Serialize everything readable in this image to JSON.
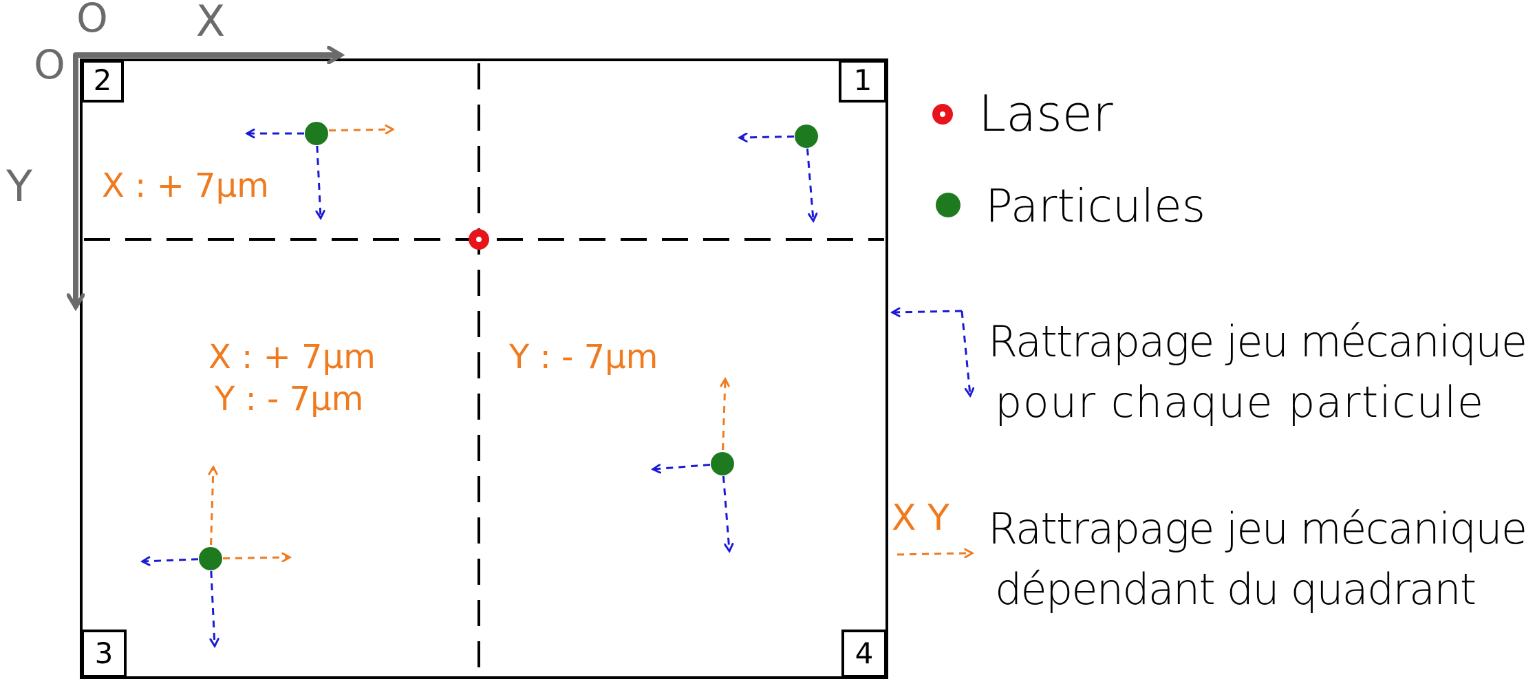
{
  "axes": {
    "origin_top": "O",
    "origin_left": "O",
    "x_label": "X",
    "y_label": "Y"
  },
  "quadrants": {
    "q1": "1",
    "q2": "2",
    "q3": "3",
    "q4": "4"
  },
  "quadrant_offsets": {
    "q2_x": "X : + 7μm",
    "q3_x": "X : + 7μm",
    "q3_y": "Y : - 7μm",
    "q4_y": "Y : - 7μm"
  },
  "legend": {
    "laser": "Laser",
    "particles": "Particules",
    "blue_line1": "Rattrapage jeu mécanique",
    "blue_line2": "pour chaque particule",
    "orange_marker": "X Y",
    "orange_line1": "Rattrapage jeu mécanique",
    "orange_line2": "dépendant du quadrant"
  },
  "colors": {
    "laser": "#e8141c",
    "particle": "#1e7a1e",
    "blue_arrow": "#1a1ad6",
    "orange_arrow": "#f07a1e",
    "axis": "#6b6b6b",
    "frame": "#000000"
  }
}
